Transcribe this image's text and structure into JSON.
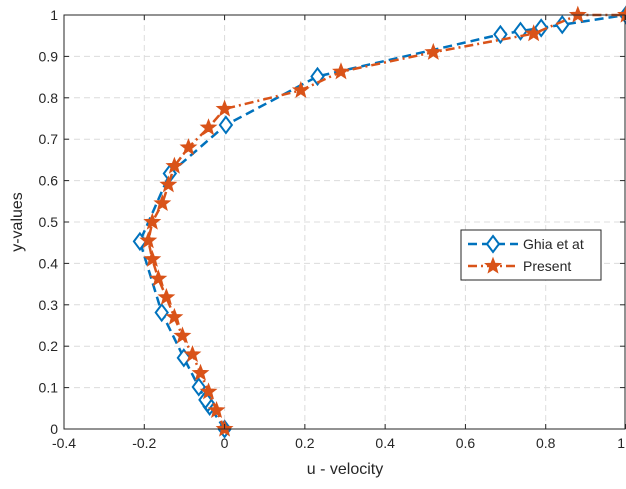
{
  "chart_data": {
    "type": "line",
    "title": "",
    "xlabel": "u - velocity",
    "ylabel": "y-values",
    "xlim": [
      -0.4,
      1
    ],
    "ylim": [
      0,
      1
    ],
    "xticks": [
      -0.4,
      -0.2,
      0,
      0.2,
      0.4,
      0.6,
      0.8,
      1
    ],
    "xtick_labels": [
      "-0.4",
      "-0.2",
      "0",
      "0.2",
      "0.4",
      "0.6",
      "0.8",
      "1"
    ],
    "yticks": [
      0,
      0.1,
      0.2,
      0.3,
      0.4,
      0.5,
      0.6,
      0.7,
      0.8,
      0.9,
      1
    ],
    "ytick_labels": [
      "0",
      "0.1",
      "0.2",
      "0.3",
      "0.4",
      "0.5",
      "0.6",
      "0.7",
      "0.8",
      "0.9",
      "1"
    ],
    "grid": true,
    "legend_position": "right",
    "series": [
      {
        "name": "Ghia et at",
        "color": "#0072BD",
        "line_style": "dashed",
        "marker": "diamond",
        "points": [
          [
            0,
            0
          ],
          [
            -0.0372,
            0.0547
          ],
          [
            -0.0419,
            0.0625
          ],
          [
            -0.0477,
            0.0703
          ],
          [
            -0.0643,
            0.1016
          ],
          [
            -0.1015,
            0.1719
          ],
          [
            -0.1566,
            0.2813
          ],
          [
            -0.2109,
            0.4531
          ],
          [
            -0.1364,
            0.6172
          ],
          [
            0.0033,
            0.7344
          ],
          [
            0.2315,
            0.8516
          ],
          [
            0.6872,
            0.9531
          ],
          [
            0.7372,
            0.9609
          ],
          [
            0.7887,
            0.9688
          ],
          [
            0.8412,
            0.9766
          ],
          [
            1,
            1
          ]
        ]
      },
      {
        "name": "Present",
        "color": "#D95319",
        "line_style": "dashdot",
        "marker": "star",
        "points": [
          [
            0,
            0
          ],
          [
            -0.02,
            0.045
          ],
          [
            -0.04,
            0.09
          ],
          [
            -0.06,
            0.135
          ],
          [
            -0.08,
            0.18
          ],
          [
            -0.105,
            0.225
          ],
          [
            -0.125,
            0.27
          ],
          [
            -0.145,
            0.318
          ],
          [
            -0.165,
            0.363
          ],
          [
            -0.18,
            0.41
          ],
          [
            -0.19,
            0.455
          ],
          [
            -0.18,
            0.5
          ],
          [
            -0.155,
            0.545
          ],
          [
            -0.14,
            0.59
          ],
          [
            -0.125,
            0.635
          ],
          [
            -0.09,
            0.68
          ],
          [
            -0.04,
            0.728
          ],
          [
            0,
            0.773
          ],
          [
            0.19,
            0.818
          ],
          [
            0.29,
            0.863
          ],
          [
            0.52,
            0.91
          ],
          [
            0.77,
            0.955
          ],
          [
            0.88,
            1
          ],
          [
            1,
            1
          ]
        ]
      }
    ]
  }
}
